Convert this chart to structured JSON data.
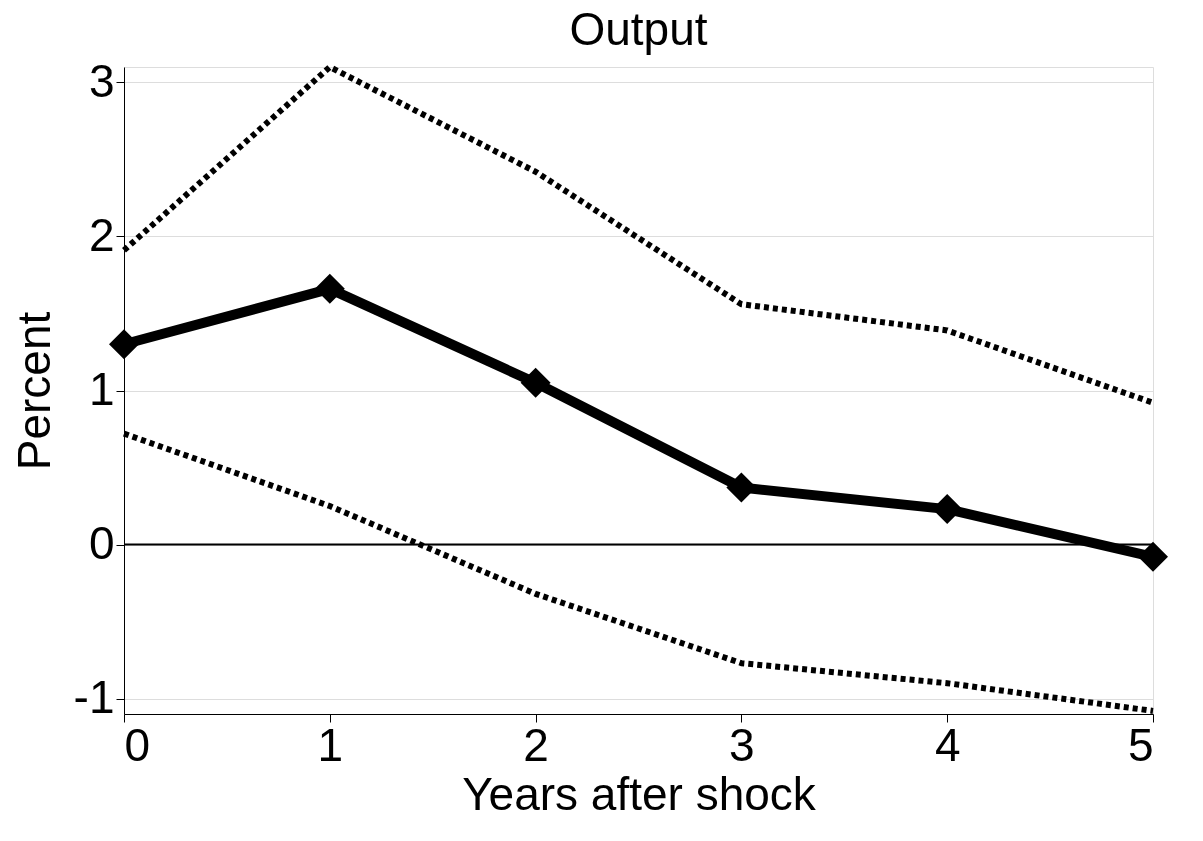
{
  "chart_data": {
    "type": "line",
    "title": "Output",
    "xlabel": "Years after shock",
    "ylabel": "Percent",
    "x": [
      0,
      1,
      2,
      3,
      4,
      5
    ],
    "series": [
      {
        "color": "#000000",
        "values": [
          1.3,
          1.66,
          1.05,
          0.37,
          0.23,
          -0.08
        ],
        "marker": "diamond",
        "line_style": "solid"
      },
      {
        "color": "#000000",
        "values": [
          1.91,
          3.1,
          2.42,
          1.56,
          1.39,
          0.92
        ],
        "marker": "none",
        "line_style": "dotted"
      },
      {
        "color": "#000000",
        "values": [
          0.72,
          0.25,
          -0.32,
          -0.77,
          -0.9,
          -1.08
        ],
        "marker": "none",
        "line_style": "dotted"
      }
    ],
    "xlim": [
      0,
      5
    ],
    "ylim": [
      -1.1,
      3.1
    ],
    "xticks": [
      0,
      1,
      2,
      3,
      4,
      5
    ],
    "yticks": [
      -1,
      0,
      1,
      2,
      3
    ],
    "ref_lines": [
      {
        "axis": "y",
        "value": 0,
        "color": "#000000",
        "line_style": "solid"
      }
    ],
    "grid": "y"
  }
}
